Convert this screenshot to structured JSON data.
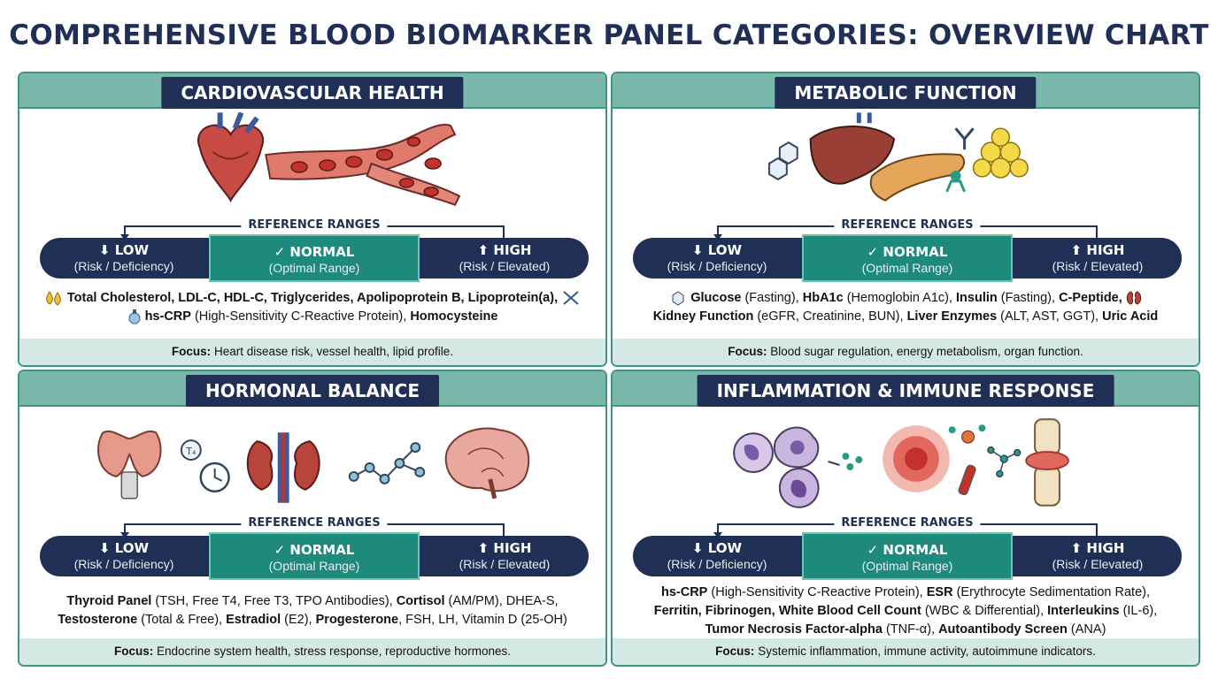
{
  "page_title": "COMPREHENSIVE BLOOD BIOMARKER PANEL CATEGORIES: OVERVIEW CHART",
  "ref_label": "REFERENCE RANGES",
  "ranges": {
    "low": {
      "arrow": "⬇",
      "label": "LOW",
      "sub": "(Risk / Deficiency)"
    },
    "normal": {
      "arrow": "✓",
      "label": "NORMAL",
      "sub": "(Optimal Range)"
    },
    "high": {
      "arrow": "⬆",
      "label": "HIGH",
      "sub": "(Risk / Elevated)"
    }
  },
  "focus_label": "Focus:",
  "colors": {
    "navy": "#1f2f55",
    "teal": "#1e8a7c",
    "header_teal": "#7ab8ac",
    "focus_bg": "#d4e9e4"
  },
  "panels": {
    "cardio": {
      "title": "CARDIOVASCULAR HEALTH",
      "icons": [
        "heart-icon",
        "artery-icon",
        "blood-cell-icon",
        "lipid-droplet-icon",
        "dna-icon",
        "flask-icon"
      ],
      "m1": "Total Cholesterol, LDL-C, HDL-C, Triglycerides, Apolipoprotein B, Lipoprotein(a),",
      "m2": "hs-CRP",
      "m3": " (High-Sensitivity C-Reactive Protein), ",
      "m4": "Homocysteine",
      "focus": " Heart disease risk, vessel health, lipid profile."
    },
    "metabolic": {
      "title": "METABOLIC FUNCTION",
      "icons": [
        "liver-icon",
        "pancreas-icon",
        "antibody-icon",
        "fat-cells-icon",
        "glucose-icon",
        "kidney-icon"
      ],
      "a1": "Glucose",
      "a2": " (Fasting), ",
      "a3": "HbA1c",
      "a4": " (Hemoglobin A1c), ",
      "a5": "Insulin",
      "a6": " (Fasting), ",
      "a7": "C-Peptide,",
      "b1": "Kidney Function",
      "b2": " (eGFR, Creatinine, BUN), ",
      "b3": "Liver Enzymes",
      "b4": " (ALT, AST, GGT), ",
      "b5": "Uric Acid",
      "focus": " Blood sugar regulation, energy metabolism, organ function."
    },
    "hormonal": {
      "title": "HORMONAL BALANCE",
      "icons": [
        "thyroid-icon",
        "t4-clock-icon",
        "kidney-adrenal-icon",
        "molecule-icon",
        "brain-icon"
      ],
      "a1": "Thyroid Panel",
      "a2": " (TSH, Free T4, Free T3, TPO Antibodies), ",
      "a3": "Cortisol",
      "a4": " (AM/PM), DHEA-S,",
      "b1": "Testosterone",
      "b2": " (Total & Free), ",
      "b3": "Estradiol",
      "b4": " (E2), ",
      "b5": "Progesterone",
      "b6": ", FSH, LH, Vitamin D (25-OH)",
      "t4": "T₄",
      "focus": " Endocrine system health, stress response, reproductive hormones."
    },
    "inflammation": {
      "title": "INFLAMMATION & IMMUNE RESPONSE",
      "icons": [
        "white-blood-cell-icon",
        "macrophage-icon",
        "inflammation-icon",
        "test-tube-icon",
        "joint-icon"
      ],
      "a1": "hs-CRP",
      "a2": " (High-Sensitivity C-Reactive Protein), ",
      "a3": "ESR",
      "a4": " (Erythrocyte Sedimentation Rate),",
      "b1": "Ferritin, Fibrinogen, White Blood Cell Count",
      "b2": " (WBC & Differential), ",
      "b3": "Interleukins",
      "b4": " (IL-6),",
      "c1": "Tumor Necrosis Factor-alpha",
      "c2": " (TNF-α), ",
      "c3": "Autoantibody Screen",
      "c4": " (ANA)",
      "focus": " Systemic inflammation, immune activity, autoimmune indicators."
    }
  }
}
